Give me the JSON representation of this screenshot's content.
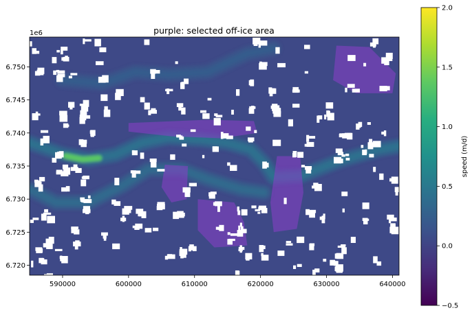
{
  "chart_data": {
    "type": "heatmap",
    "title": "purple: selected off-ice area",
    "xlabel": "",
    "ylabel": "",
    "x_offset_label": "1e6",
    "xlim": [
      585000,
      641000
    ],
    "ylim": [
      6718500,
      6754500
    ],
    "x_ticks": [
      {
        "value": 590000,
        "label": "590000"
      },
      {
        "value": 600000,
        "label": "600000"
      },
      {
        "value": 610000,
        "label": "610000"
      },
      {
        "value": 620000,
        "label": "620000"
      },
      {
        "value": 630000,
        "label": "630000"
      },
      {
        "value": 640000,
        "label": "640000"
      }
    ],
    "y_ticks": [
      {
        "value": 6720000,
        "label": "6.720"
      },
      {
        "value": 6725000,
        "label": "6.725"
      },
      {
        "value": 6730000,
        "label": "6.730"
      },
      {
        "value": 6735000,
        "label": "6.735"
      },
      {
        "value": 6740000,
        "label": "6.740"
      },
      {
        "value": 6745000,
        "label": "6.745"
      },
      {
        "value": 6750000,
        "label": "6.750"
      }
    ],
    "colorbar": {
      "label": "speed (m/d)",
      "colormap": "viridis",
      "range": [
        -0.5,
        2.0
      ],
      "ticks": [
        {
          "value": 2.0,
          "label": "2.0"
        },
        {
          "value": 1.5,
          "label": "1.5"
        },
        {
          "value": 1.0,
          "label": "1.0"
        },
        {
          "value": 0.5,
          "label": "0.5"
        },
        {
          "value": 0.0,
          "label": "0.0"
        },
        {
          "value": -0.5,
          "label": "−0.5"
        }
      ]
    },
    "background_speed": 0.05,
    "glacier_flowlines": [
      {
        "speed": 0.42,
        "points": [
          [
            585000,
            6738500
          ],
          [
            590000,
            6736800
          ],
          [
            594000,
            6736000
          ],
          [
            598000,
            6736700
          ],
          [
            602000,
            6738500
          ],
          [
            606000,
            6739300
          ],
          [
            611000,
            6739000
          ],
          [
            615000,
            6738500
          ],
          [
            618500,
            6737500
          ],
          [
            620500,
            6735500
          ],
          [
            622000,
            6733300
          ],
          [
            626000,
            6733500
          ],
          [
            632000,
            6735800
          ],
          [
            638000,
            6737500
          ],
          [
            641000,
            6738000
          ]
        ]
      },
      {
        "speed": 0.35,
        "points": [
          [
            585000,
            6731500
          ],
          [
            589000,
            6729500
          ],
          [
            594000,
            6729500
          ],
          [
            599000,
            6732000
          ],
          [
            603000,
            6734500
          ],
          [
            608000,
            6734500
          ],
          [
            612000,
            6733000
          ],
          [
            617000,
            6731500
          ],
          [
            620500,
            6731000
          ]
        ]
      },
      {
        "speed": 0.22,
        "points": [
          [
            590000,
            6748000
          ],
          [
            596000,
            6747500
          ],
          [
            601000,
            6749200
          ],
          [
            606000,
            6748800
          ],
          [
            612000,
            6749200
          ],
          [
            618000,
            6752000
          ],
          [
            622000,
            6752800
          ]
        ]
      }
    ],
    "fast_zone": {
      "speed": 1.35,
      "points": [
        [
          590500,
          6736500
        ],
        [
          593000,
          6736000
        ],
        [
          595500,
          6736200
        ]
      ]
    },
    "off_ice_polygons": [
      [
        [
          600000,
          6741500
        ],
        [
          612000,
          6742000
        ],
        [
          619000,
          6741800
        ],
        [
          619500,
          6740000
        ],
        [
          614000,
          6739200
        ],
        [
          606500,
          6739500
        ],
        [
          600000,
          6740200
        ]
      ],
      [
        [
          605500,
          6735200
        ],
        [
          609000,
          6735000
        ],
        [
          608800,
          6730000
        ],
        [
          606500,
          6729500
        ],
        [
          605000,
          6731800
        ]
      ],
      [
        [
          610500,
          6730000
        ],
        [
          616000,
          6729500
        ],
        [
          617500,
          6726500
        ],
        [
          618000,
          6723000
        ],
        [
          613000,
          6722700
        ],
        [
          610500,
          6725300
        ]
      ],
      [
        [
          622500,
          6736500
        ],
        [
          626000,
          6736500
        ],
        [
          626500,
          6731000
        ],
        [
          625500,
          6725500
        ],
        [
          622000,
          6725000
        ],
        [
          621500,
          6729500
        ]
      ],
      [
        [
          631500,
          6753200
        ],
        [
          636500,
          6753000
        ],
        [
          640500,
          6749000
        ],
        [
          640000,
          6746000
        ],
        [
          634500,
          6746000
        ],
        [
          631000,
          6748000
        ]
      ]
    ],
    "nodata_count": 200
  }
}
